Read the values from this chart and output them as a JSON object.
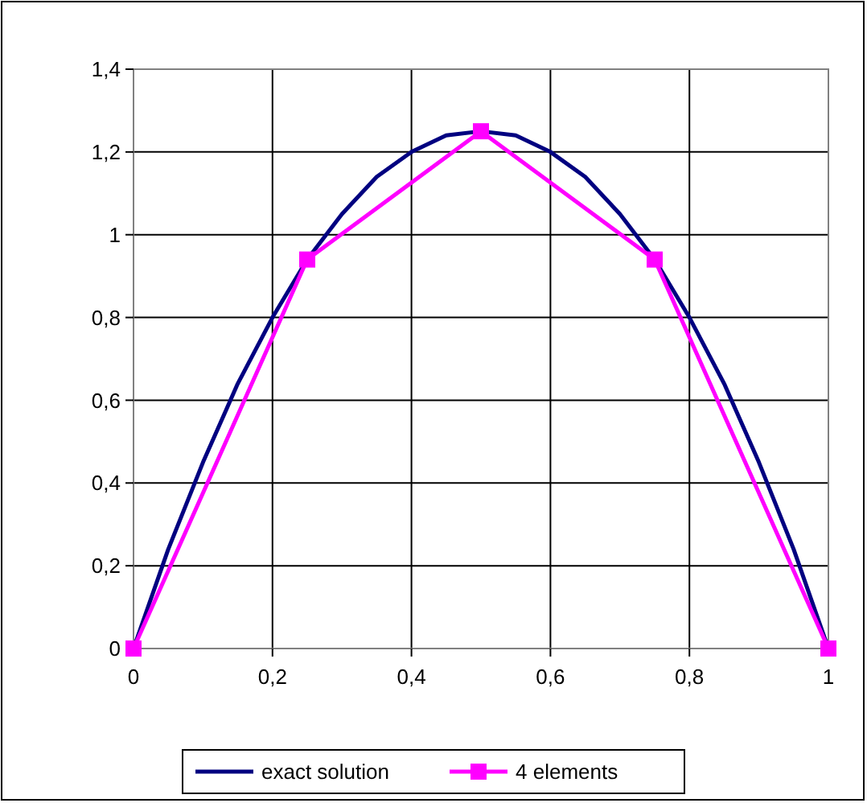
{
  "chart_data": {
    "type": "line",
    "xlim": [
      0,
      1
    ],
    "ylim": [
      0,
      1.4
    ],
    "xticks": [
      0,
      {
        "value": 0.2,
        "label": "0,2"
      },
      {
        "value": 0.4,
        "label": "0,4"
      },
      {
        "value": 0.6,
        "label": "0,6"
      },
      {
        "value": 0.8,
        "label": "0,8"
      },
      1
    ],
    "yticks": [
      0,
      {
        "value": 0.2,
        "label": "0,2"
      },
      {
        "value": 0.4,
        "label": "0,4"
      },
      {
        "value": 0.6,
        "label": "0,6"
      },
      {
        "value": 0.8,
        "label": "0,8"
      },
      1,
      {
        "value": 1.2,
        "label": "1,2"
      },
      {
        "value": 1.4,
        "label": "1,4"
      }
    ],
    "grid": true,
    "legend": "bottom",
    "line_style": "solid",
    "series": [
      {
        "name": "exact solution",
        "color": "#000080",
        "marker": "none",
        "x": [
          0,
          0.05,
          0.1,
          0.15,
          0.2,
          0.25,
          0.3,
          0.35,
          0.4,
          0.45,
          0.5,
          0.55,
          0.6,
          0.65,
          0.7,
          0.75,
          0.8,
          0.85,
          0.9,
          0.95,
          1
        ],
        "values": [
          0,
          0.24,
          0.45,
          0.64,
          0.8,
          0.94,
          1.05,
          1.14,
          1.2,
          1.24,
          1.25,
          1.24,
          1.2,
          1.14,
          1.05,
          0.94,
          0.8,
          0.64,
          0.45,
          0.24,
          0
        ]
      },
      {
        "name": "4 elements",
        "color": "#ff00ff",
        "marker": "square",
        "x": [
          0,
          0.25,
          0.5,
          0.75,
          1
        ],
        "values": [
          0,
          0.94,
          1.25,
          0.94,
          0
        ]
      }
    ]
  }
}
